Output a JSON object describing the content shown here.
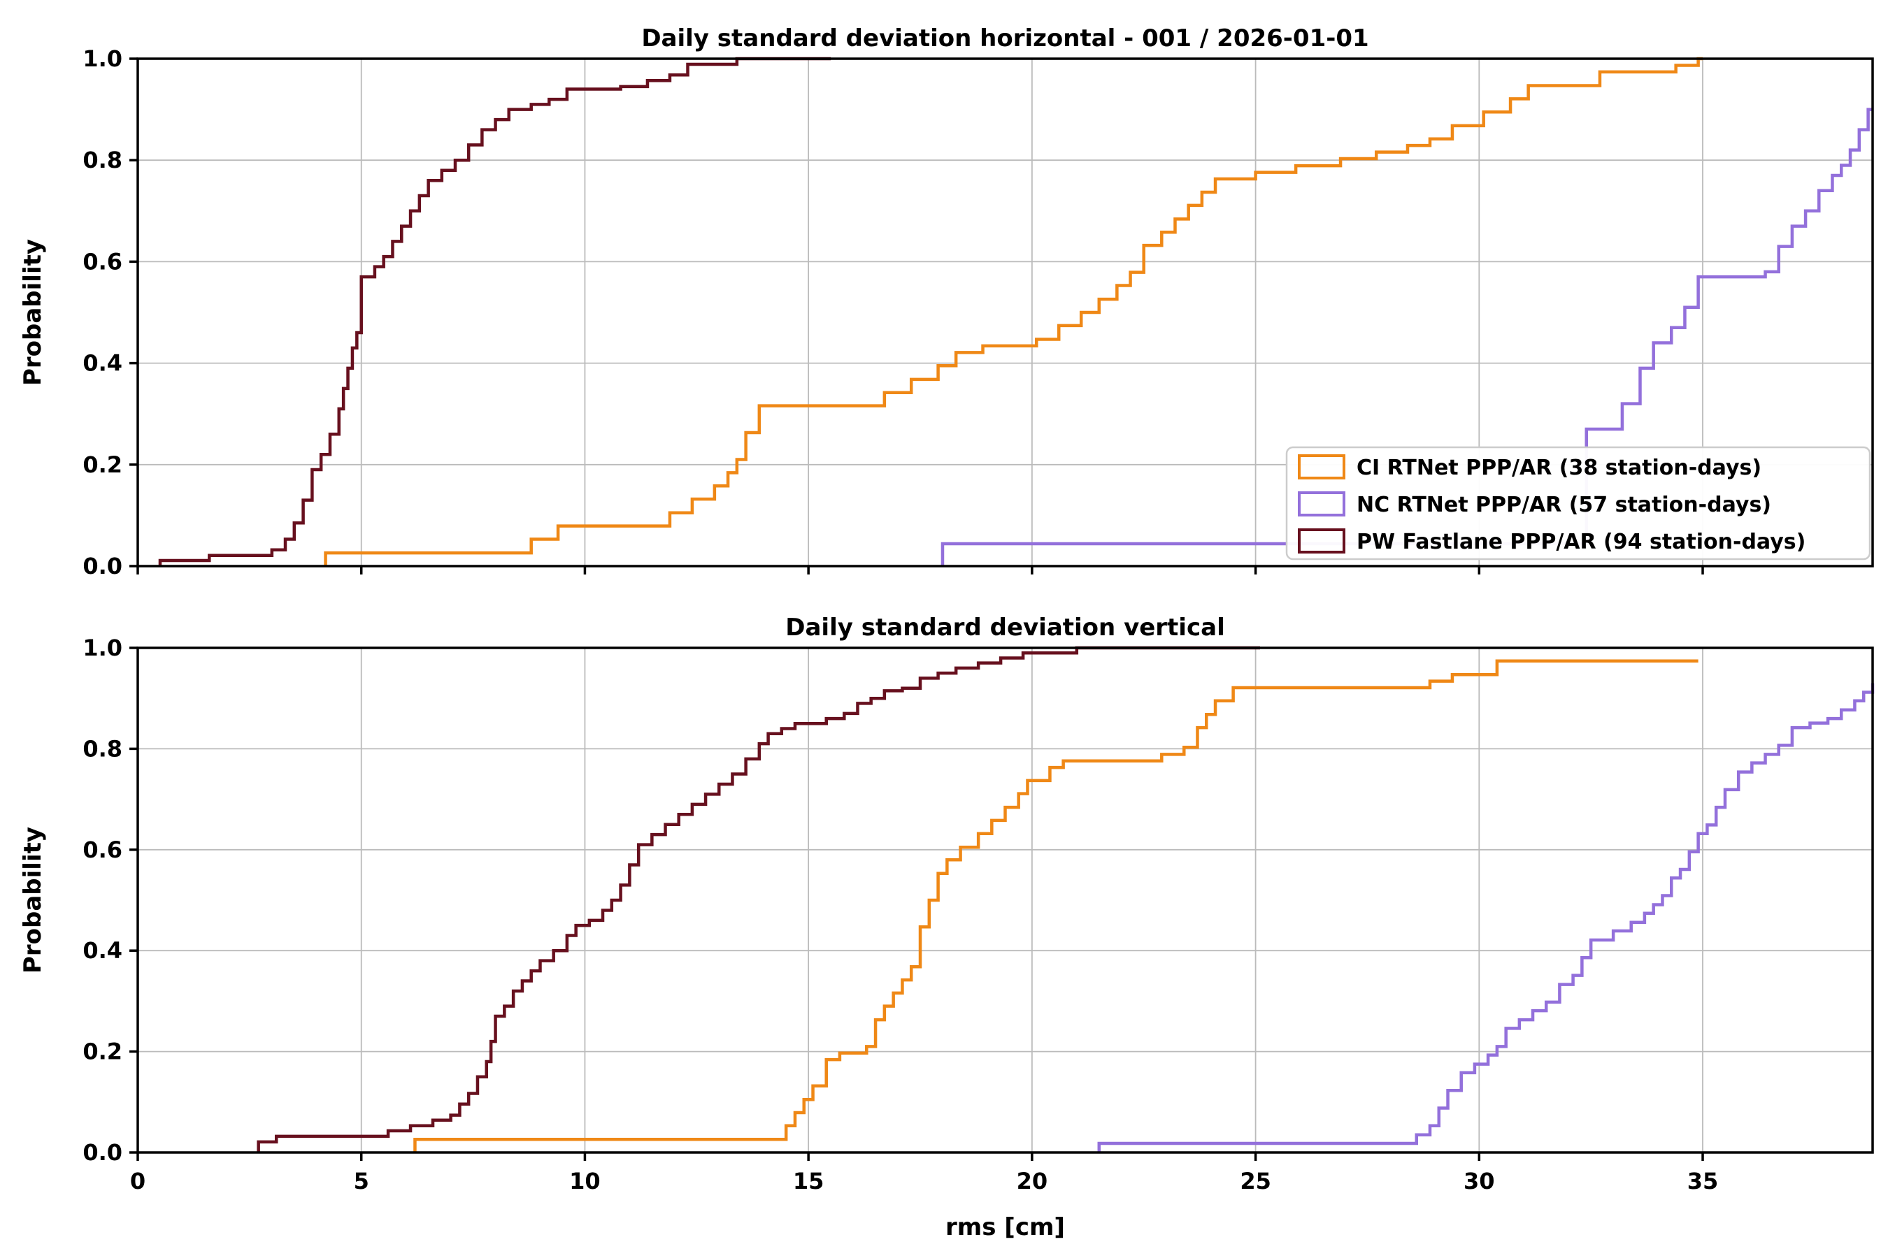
{
  "figure": {
    "kind": "matplotlib-style stacked ECDF step plots",
    "background": "#ffffff"
  },
  "style": {
    "grid_color": "#bbbbbb",
    "spine_color": "#000000",
    "legend_border_color": "#cccccc",
    "text_color": "#000000"
  },
  "legend": {
    "visible_on": "top",
    "location": "lower right",
    "entries": [
      "CI RTNet PPP/AR (38 station-days)",
      "NC RTNet PPP/AR (57 station-days)",
      "PW Fastlane PPP/AR (94 station-days)"
    ]
  },
  "chart_data": [
    {
      "type": "line",
      "subtype": "step-ecdf",
      "title": "Daily standard deviation horizontal - 001  / 2026-01-01",
      "xlabel": "",
      "ylabel": "Probability",
      "xlim": [
        0,
        38.8
      ],
      "ylim": [
        0,
        1.0
      ],
      "xticks": [
        0,
        5,
        10,
        15,
        20,
        25,
        30,
        35
      ],
      "yticks": [
        0.0,
        0.2,
        0.4,
        0.6,
        0.8,
        1.0
      ],
      "grid": true,
      "show_x_tick_labels": false,
      "legend_visible": true,
      "series": [
        {
          "name": "CI RTNet PPP/AR (38 station-days)",
          "color": "#ef8816",
          "end_x": 35.0,
          "points": [
            [
              4.2,
              0.026
            ],
            [
              8.8,
              0.053
            ],
            [
              9.4,
              0.079
            ],
            [
              11.9,
              0.105
            ],
            [
              12.4,
              0.132
            ],
            [
              12.9,
              0.158
            ],
            [
              13.2,
              0.184
            ],
            [
              13.4,
              0.21
            ],
            [
              13.6,
              0.263
            ],
            [
              13.9,
              0.316
            ],
            [
              16.7,
              0.342
            ],
            [
              17.3,
              0.368
            ],
            [
              17.9,
              0.395
            ],
            [
              18.3,
              0.421
            ],
            [
              18.9,
              0.434
            ],
            [
              20.1,
              0.447
            ],
            [
              20.6,
              0.474
            ],
            [
              21.1,
              0.5
            ],
            [
              21.5,
              0.526
            ],
            [
              21.9,
              0.553
            ],
            [
              22.2,
              0.579
            ],
            [
              22.5,
              0.632
            ],
            [
              22.9,
              0.658
            ],
            [
              23.2,
              0.684
            ],
            [
              23.5,
              0.711
            ],
            [
              23.8,
              0.737
            ],
            [
              24.1,
              0.763
            ],
            [
              25.0,
              0.776
            ],
            [
              25.9,
              0.789
            ],
            [
              26.9,
              0.803
            ],
            [
              27.7,
              0.816
            ],
            [
              28.4,
              0.829
            ],
            [
              28.9,
              0.842
            ],
            [
              29.4,
              0.868
            ],
            [
              30.1,
              0.895
            ],
            [
              30.7,
              0.921
            ],
            [
              31.1,
              0.947
            ],
            [
              32.7,
              0.974
            ],
            [
              34.4,
              0.987
            ],
            [
              34.9,
              1.0
            ]
          ]
        },
        {
          "name": "NC RTNet PPP/AR (57 station-days)",
          "color": "#9370db",
          "end_x": 38.8,
          "points": [
            [
              18.0,
              0.044
            ],
            [
              32.4,
              0.27
            ],
            [
              33.2,
              0.32
            ],
            [
              33.6,
              0.39
            ],
            [
              33.9,
              0.44
            ],
            [
              34.3,
              0.47
            ],
            [
              34.6,
              0.51
            ],
            [
              34.9,
              0.57
            ],
            [
              36.4,
              0.58
            ],
            [
              36.7,
              0.63
            ],
            [
              37.0,
              0.67
            ],
            [
              37.3,
              0.7
            ],
            [
              37.6,
              0.74
            ],
            [
              37.9,
              0.77
            ],
            [
              38.1,
              0.79
            ],
            [
              38.3,
              0.82
            ],
            [
              38.5,
              0.86
            ],
            [
              38.7,
              0.9
            ]
          ]
        },
        {
          "name": "PW Fastlane PPP/AR (94 station-days)",
          "color": "#67101e",
          "end_x": 15.5,
          "points": [
            [
              0.5,
              0.011
            ],
            [
              1.6,
              0.021
            ],
            [
              3.0,
              0.032
            ],
            [
              3.3,
              0.053
            ],
            [
              3.5,
              0.085
            ],
            [
              3.7,
              0.13
            ],
            [
              3.9,
              0.19
            ],
            [
              4.1,
              0.22
            ],
            [
              4.3,
              0.26
            ],
            [
              4.5,
              0.31
            ],
            [
              4.6,
              0.35
            ],
            [
              4.7,
              0.39
            ],
            [
              4.8,
              0.43
            ],
            [
              4.9,
              0.46
            ],
            [
              5.0,
              0.57
            ],
            [
              5.3,
              0.59
            ],
            [
              5.5,
              0.61
            ],
            [
              5.7,
              0.64
            ],
            [
              5.9,
              0.67
            ],
            [
              6.1,
              0.7
            ],
            [
              6.3,
              0.73
            ],
            [
              6.5,
              0.76
            ],
            [
              6.8,
              0.78
            ],
            [
              7.1,
              0.8
            ],
            [
              7.4,
              0.83
            ],
            [
              7.7,
              0.86
            ],
            [
              8.0,
              0.88
            ],
            [
              8.3,
              0.9
            ],
            [
              8.8,
              0.91
            ],
            [
              9.2,
              0.92
            ],
            [
              9.6,
              0.94
            ],
            [
              10.8,
              0.945
            ],
            [
              11.4,
              0.957
            ],
            [
              11.9,
              0.968
            ],
            [
              12.3,
              0.989
            ],
            [
              13.4,
              1.0
            ]
          ]
        }
      ]
    },
    {
      "type": "line",
      "subtype": "step-ecdf",
      "title": "Daily standard deviation vertical",
      "xlabel": "rms [cm]",
      "ylabel": "Probability",
      "xlim": [
        0,
        38.8
      ],
      "ylim": [
        0,
        1.0
      ],
      "xticks": [
        0,
        5,
        10,
        15,
        20,
        25,
        30,
        35
      ],
      "yticks": [
        0.0,
        0.2,
        0.4,
        0.6,
        0.8,
        1.0
      ],
      "grid": true,
      "show_x_tick_labels": true,
      "legend_visible": false,
      "series": [
        {
          "name": "CI RTNet PPP/AR (38 station-days)",
          "color": "#ef8816",
          "end_x": 34.9,
          "points": [
            [
              6.2,
              0.026
            ],
            [
              14.5,
              0.053
            ],
            [
              14.7,
              0.079
            ],
            [
              14.9,
              0.105
            ],
            [
              15.1,
              0.132
            ],
            [
              15.4,
              0.184
            ],
            [
              15.7,
              0.197
            ],
            [
              16.3,
              0.21
            ],
            [
              16.5,
              0.263
            ],
            [
              16.7,
              0.29
            ],
            [
              16.9,
              0.316
            ],
            [
              17.1,
              0.342
            ],
            [
              17.3,
              0.368
            ],
            [
              17.5,
              0.447
            ],
            [
              17.7,
              0.5
            ],
            [
              17.9,
              0.553
            ],
            [
              18.1,
              0.58
            ],
            [
              18.4,
              0.605
            ],
            [
              18.8,
              0.632
            ],
            [
              19.1,
              0.658
            ],
            [
              19.4,
              0.684
            ],
            [
              19.7,
              0.711
            ],
            [
              19.9,
              0.737
            ],
            [
              20.4,
              0.763
            ],
            [
              20.7,
              0.776
            ],
            [
              22.9,
              0.789
            ],
            [
              23.4,
              0.803
            ],
            [
              23.7,
              0.842
            ],
            [
              23.9,
              0.868
            ],
            [
              24.1,
              0.895
            ],
            [
              24.5,
              0.921
            ],
            [
              28.9,
              0.934
            ],
            [
              29.4,
              0.947
            ],
            [
              30.4,
              0.974
            ]
          ]
        },
        {
          "name": "NC RTNet PPP/AR (57 station-days)",
          "color": "#9370db",
          "end_x": 38.8,
          "points": [
            [
              21.5,
              0.018
            ],
            [
              28.6,
              0.035
            ],
            [
              28.9,
              0.053
            ],
            [
              29.1,
              0.088
            ],
            [
              29.3,
              0.123
            ],
            [
              29.6,
              0.158
            ],
            [
              29.9,
              0.175
            ],
            [
              30.2,
              0.193
            ],
            [
              30.4,
              0.21
            ],
            [
              30.6,
              0.246
            ],
            [
              30.9,
              0.263
            ],
            [
              31.2,
              0.281
            ],
            [
              31.5,
              0.298
            ],
            [
              31.8,
              0.333
            ],
            [
              32.1,
              0.351
            ],
            [
              32.3,
              0.386
            ],
            [
              32.5,
              0.421
            ],
            [
              33.0,
              0.439
            ],
            [
              33.4,
              0.456
            ],
            [
              33.7,
              0.474
            ],
            [
              33.9,
              0.491
            ],
            [
              34.1,
              0.509
            ],
            [
              34.3,
              0.544
            ],
            [
              34.5,
              0.561
            ],
            [
              34.7,
              0.596
            ],
            [
              34.9,
              0.632
            ],
            [
              35.1,
              0.649
            ],
            [
              35.3,
              0.684
            ],
            [
              35.5,
              0.719
            ],
            [
              35.8,
              0.754
            ],
            [
              36.1,
              0.772
            ],
            [
              36.4,
              0.789
            ],
            [
              36.7,
              0.807
            ],
            [
              37.0,
              0.842
            ],
            [
              37.4,
              0.851
            ],
            [
              37.8,
              0.86
            ],
            [
              38.1,
              0.877
            ],
            [
              38.4,
              0.895
            ],
            [
              38.6,
              0.912
            ],
            [
              38.8,
              0.93
            ]
          ]
        },
        {
          "name": "PW Fastlane PPP/AR (94 station-days)",
          "color": "#67101e",
          "end_x": 25.1,
          "points": [
            [
              2.7,
              0.021
            ],
            [
              3.1,
              0.032
            ],
            [
              5.6,
              0.043
            ],
            [
              6.1,
              0.053
            ],
            [
              6.6,
              0.064
            ],
            [
              7.0,
              0.074
            ],
            [
              7.2,
              0.096
            ],
            [
              7.4,
              0.117
            ],
            [
              7.6,
              0.15
            ],
            [
              7.8,
              0.18
            ],
            [
              7.9,
              0.22
            ],
            [
              8.0,
              0.27
            ],
            [
              8.2,
              0.29
            ],
            [
              8.4,
              0.32
            ],
            [
              8.6,
              0.34
            ],
            [
              8.8,
              0.36
            ],
            [
              9.0,
              0.38
            ],
            [
              9.3,
              0.4
            ],
            [
              9.6,
              0.43
            ],
            [
              9.8,
              0.45
            ],
            [
              10.1,
              0.46
            ],
            [
              10.4,
              0.48
            ],
            [
              10.6,
              0.5
            ],
            [
              10.8,
              0.53
            ],
            [
              11.0,
              0.57
            ],
            [
              11.2,
              0.61
            ],
            [
              11.5,
              0.63
            ],
            [
              11.8,
              0.65
            ],
            [
              12.1,
              0.67
            ],
            [
              12.4,
              0.69
            ],
            [
              12.7,
              0.71
            ],
            [
              13.0,
              0.73
            ],
            [
              13.3,
              0.75
            ],
            [
              13.6,
              0.78
            ],
            [
              13.9,
              0.81
            ],
            [
              14.1,
              0.83
            ],
            [
              14.4,
              0.84
            ],
            [
              14.7,
              0.85
            ],
            [
              15.4,
              0.86
            ],
            [
              15.8,
              0.87
            ],
            [
              16.1,
              0.89
            ],
            [
              16.4,
              0.9
            ],
            [
              16.7,
              0.915
            ],
            [
              17.1,
              0.92
            ],
            [
              17.5,
              0.94
            ],
            [
              17.9,
              0.95
            ],
            [
              18.3,
              0.96
            ],
            [
              18.8,
              0.97
            ],
            [
              19.3,
              0.98
            ],
            [
              19.8,
              0.99
            ],
            [
              21.0,
              1.0
            ]
          ]
        }
      ]
    }
  ]
}
